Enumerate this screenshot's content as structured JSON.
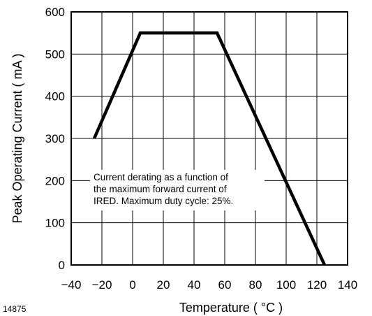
{
  "chart_data": {
    "type": "line",
    "xlabel": "Temperature ( °C )",
    "ylabel": "Peak Operating Current ( mA )",
    "xlim": [
      -40,
      140
    ],
    "ylim": [
      0,
      600
    ],
    "x_ticks": [
      -40,
      -20,
      0,
      20,
      40,
      60,
      80,
      100,
      120,
      140
    ],
    "x_tick_labels": [
      "−40",
      "−20",
      "0",
      "20",
      "40",
      "60",
      "80",
      "100",
      "120",
      "140"
    ],
    "y_ticks": [
      0,
      100,
      200,
      300,
      400,
      500,
      600
    ],
    "y_tick_labels": [
      "0",
      "100",
      "200",
      "300",
      "400",
      "500",
      "600"
    ],
    "grid": true,
    "series": [
      {
        "x": [
          -25,
          5,
          55,
          125
        ],
        "y": [
          300,
          550,
          550,
          0
        ]
      }
    ],
    "annotation": [
      "Current derating as a function of",
      "the maximum forward current of",
      "IRED. Maximum duty cycle: 25%."
    ]
  },
  "figure_id": "14875"
}
